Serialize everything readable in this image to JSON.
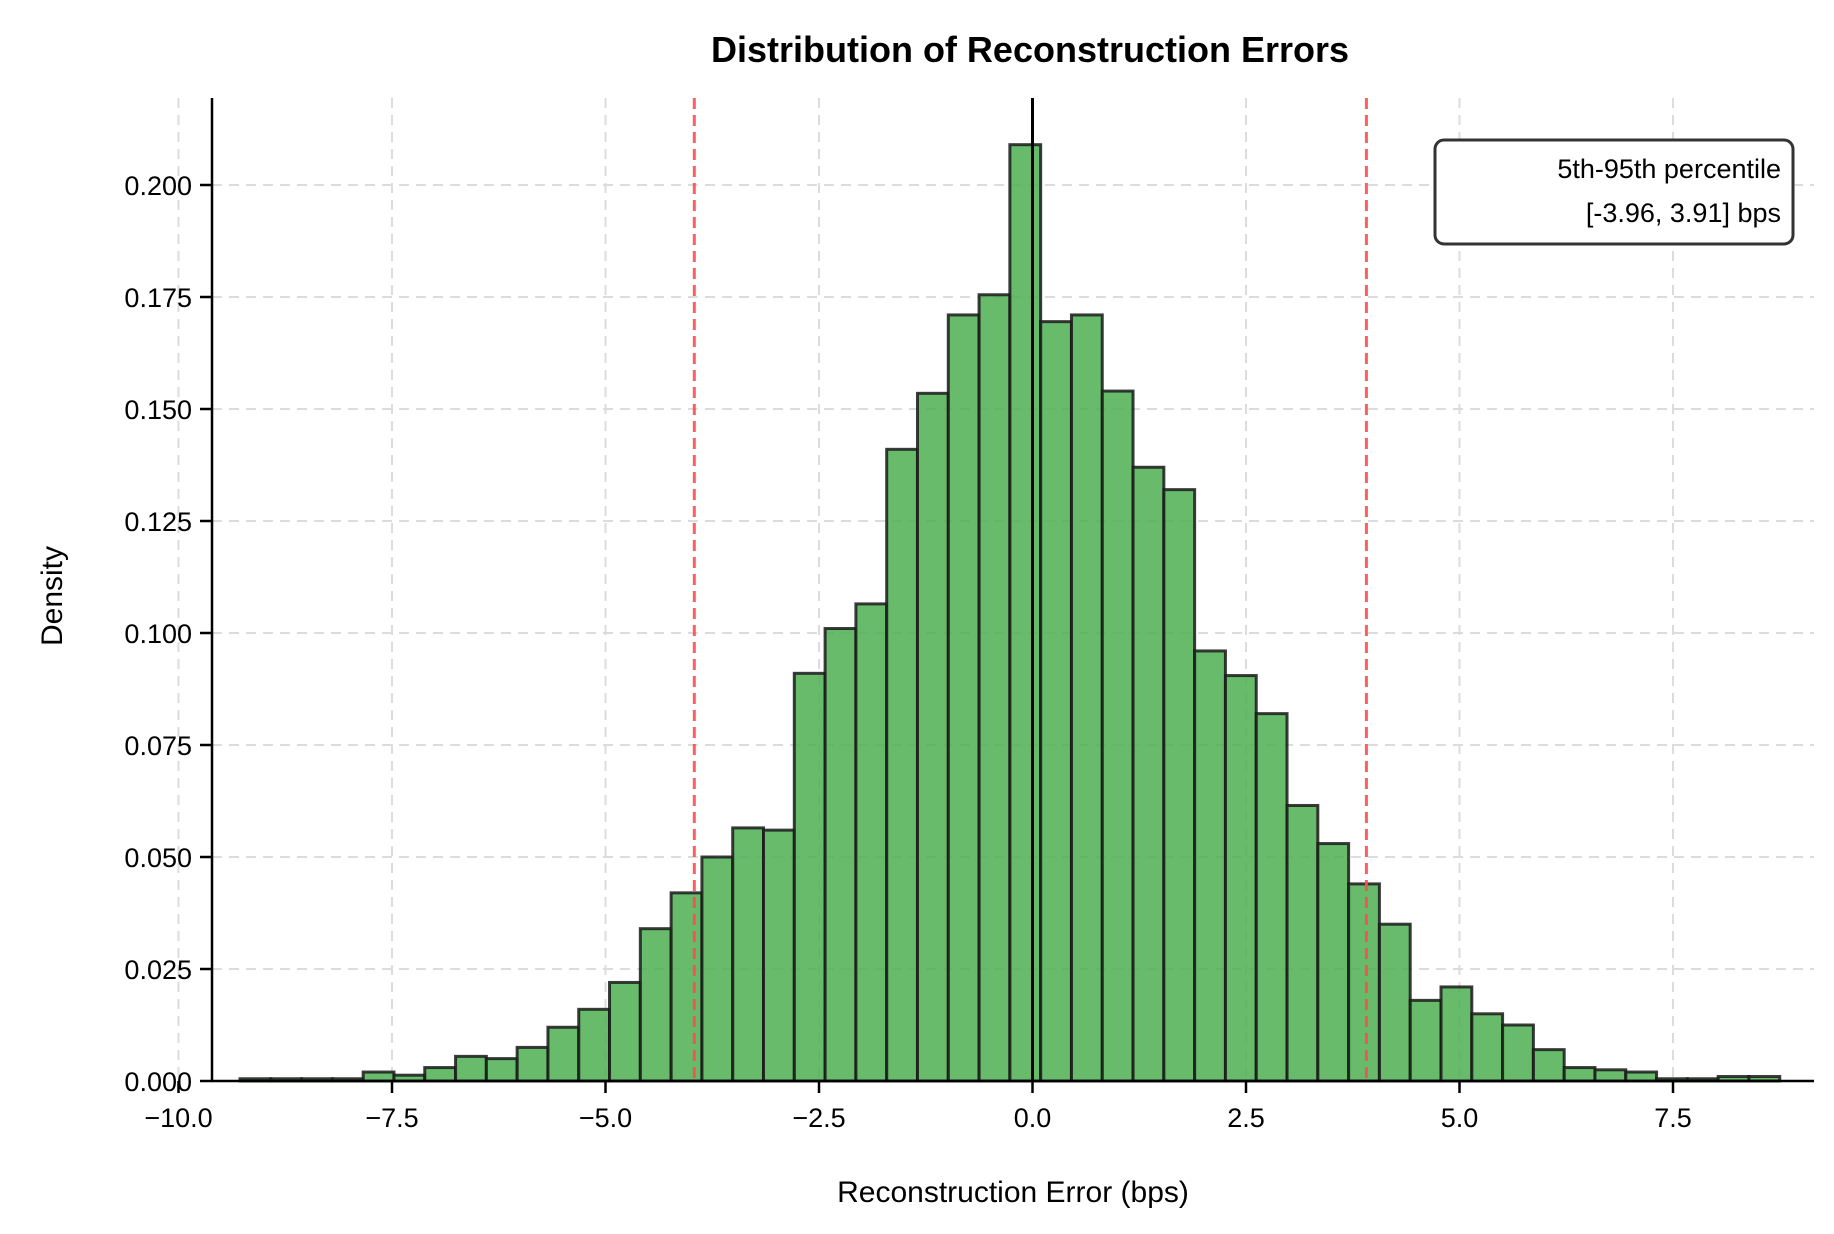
{
  "chart_data": {
    "type": "bar",
    "subtype": "histogram",
    "title": "Distribution of Reconstruction Errors",
    "xlabel": "Reconstruction Error (bps)",
    "ylabel": "Density",
    "xlim": [
      -10.3,
      9.6
    ],
    "ylim": [
      0,
      0.22
    ],
    "xticks": [
      -10.0,
      -7.5,
      -5.0,
      -2.5,
      0.0,
      2.5,
      5.0,
      7.5
    ],
    "xtick_labels": [
      "−10.0",
      "−7.5",
      "−5.0",
      "−2.5",
      "0.0",
      "2.5",
      "5.0",
      "7.5"
    ],
    "yticks": [
      0.0,
      0.025,
      0.05,
      0.075,
      0.1,
      0.125,
      0.15,
      0.175,
      0.2
    ],
    "ytick_labels": [
      "0.000",
      "0.025",
      "0.050",
      "0.075",
      "0.100",
      "0.125",
      "0.150",
      "0.175",
      "0.200"
    ],
    "grid": true,
    "bin_start": -9.28,
    "bin_width": 0.3606,
    "values": [
      0.0005,
      0.0005,
      0.0005,
      0.0005,
      0.002,
      0.0013,
      0.003,
      0.0055,
      0.005,
      0.0075,
      0.012,
      0.016,
      0.022,
      0.034,
      0.042,
      0.05,
      0.0565,
      0.056,
      0.091,
      0.101,
      0.1065,
      0.141,
      0.1535,
      0.171,
      0.1755,
      0.209,
      0.1695,
      0.171,
      0.154,
      0.137,
      0.132,
      0.096,
      0.0905,
      0.082,
      0.0615,
      0.053,
      0.044,
      0.035,
      0.018,
      0.021,
      0.015,
      0.0125,
      0.007,
      0.003,
      0.0025,
      0.002,
      0.0005,
      0.0005,
      0.001,
      0.001
    ],
    "bar_color": "#4caf50",
    "bar_edge_color": "#1a1a1a",
    "vlines": [
      {
        "x": 0.0,
        "color": "#000000",
        "style": "solid"
      },
      {
        "x": -3.96,
        "color": "#ff4d4d",
        "style": "dashed"
      },
      {
        "x": 3.91,
        "color": "#ff4d4d",
        "style": "dashed"
      }
    ],
    "annotation": {
      "line1": "5th-95th percentile",
      "line2": "[-3.96, 3.91] bps",
      "position": "upper right"
    }
  }
}
